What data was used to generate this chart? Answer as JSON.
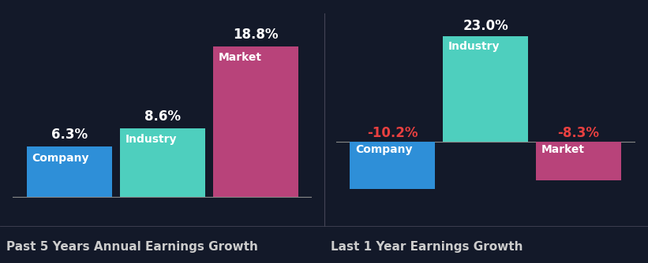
{
  "background_color": "#131929",
  "chart1_title": "Past 5 Years Annual Earnings Growth",
  "chart2_title": "Last 1 Year Earnings Growth",
  "chart1": {
    "categories": [
      "Company",
      "Industry",
      "Market"
    ],
    "values": [
      6.3,
      8.6,
      18.8
    ],
    "colors": [
      "#2e8fd8",
      "#4ecfbe",
      "#b8437a"
    ]
  },
  "chart2": {
    "categories": [
      "Company",
      "Industry",
      "Market"
    ],
    "values": [
      -10.2,
      23.0,
      -8.3
    ],
    "colors": [
      "#2e8fd8",
      "#4ecfbe",
      "#b8437a"
    ]
  },
  "label_color_positive": "#ffffff",
  "label_color_negative": "#e84040",
  "value_fontsize": 12,
  "cat_fontsize": 10,
  "title_fontsize": 11,
  "title_color": "#cccccc",
  "bar_width": 0.92
}
